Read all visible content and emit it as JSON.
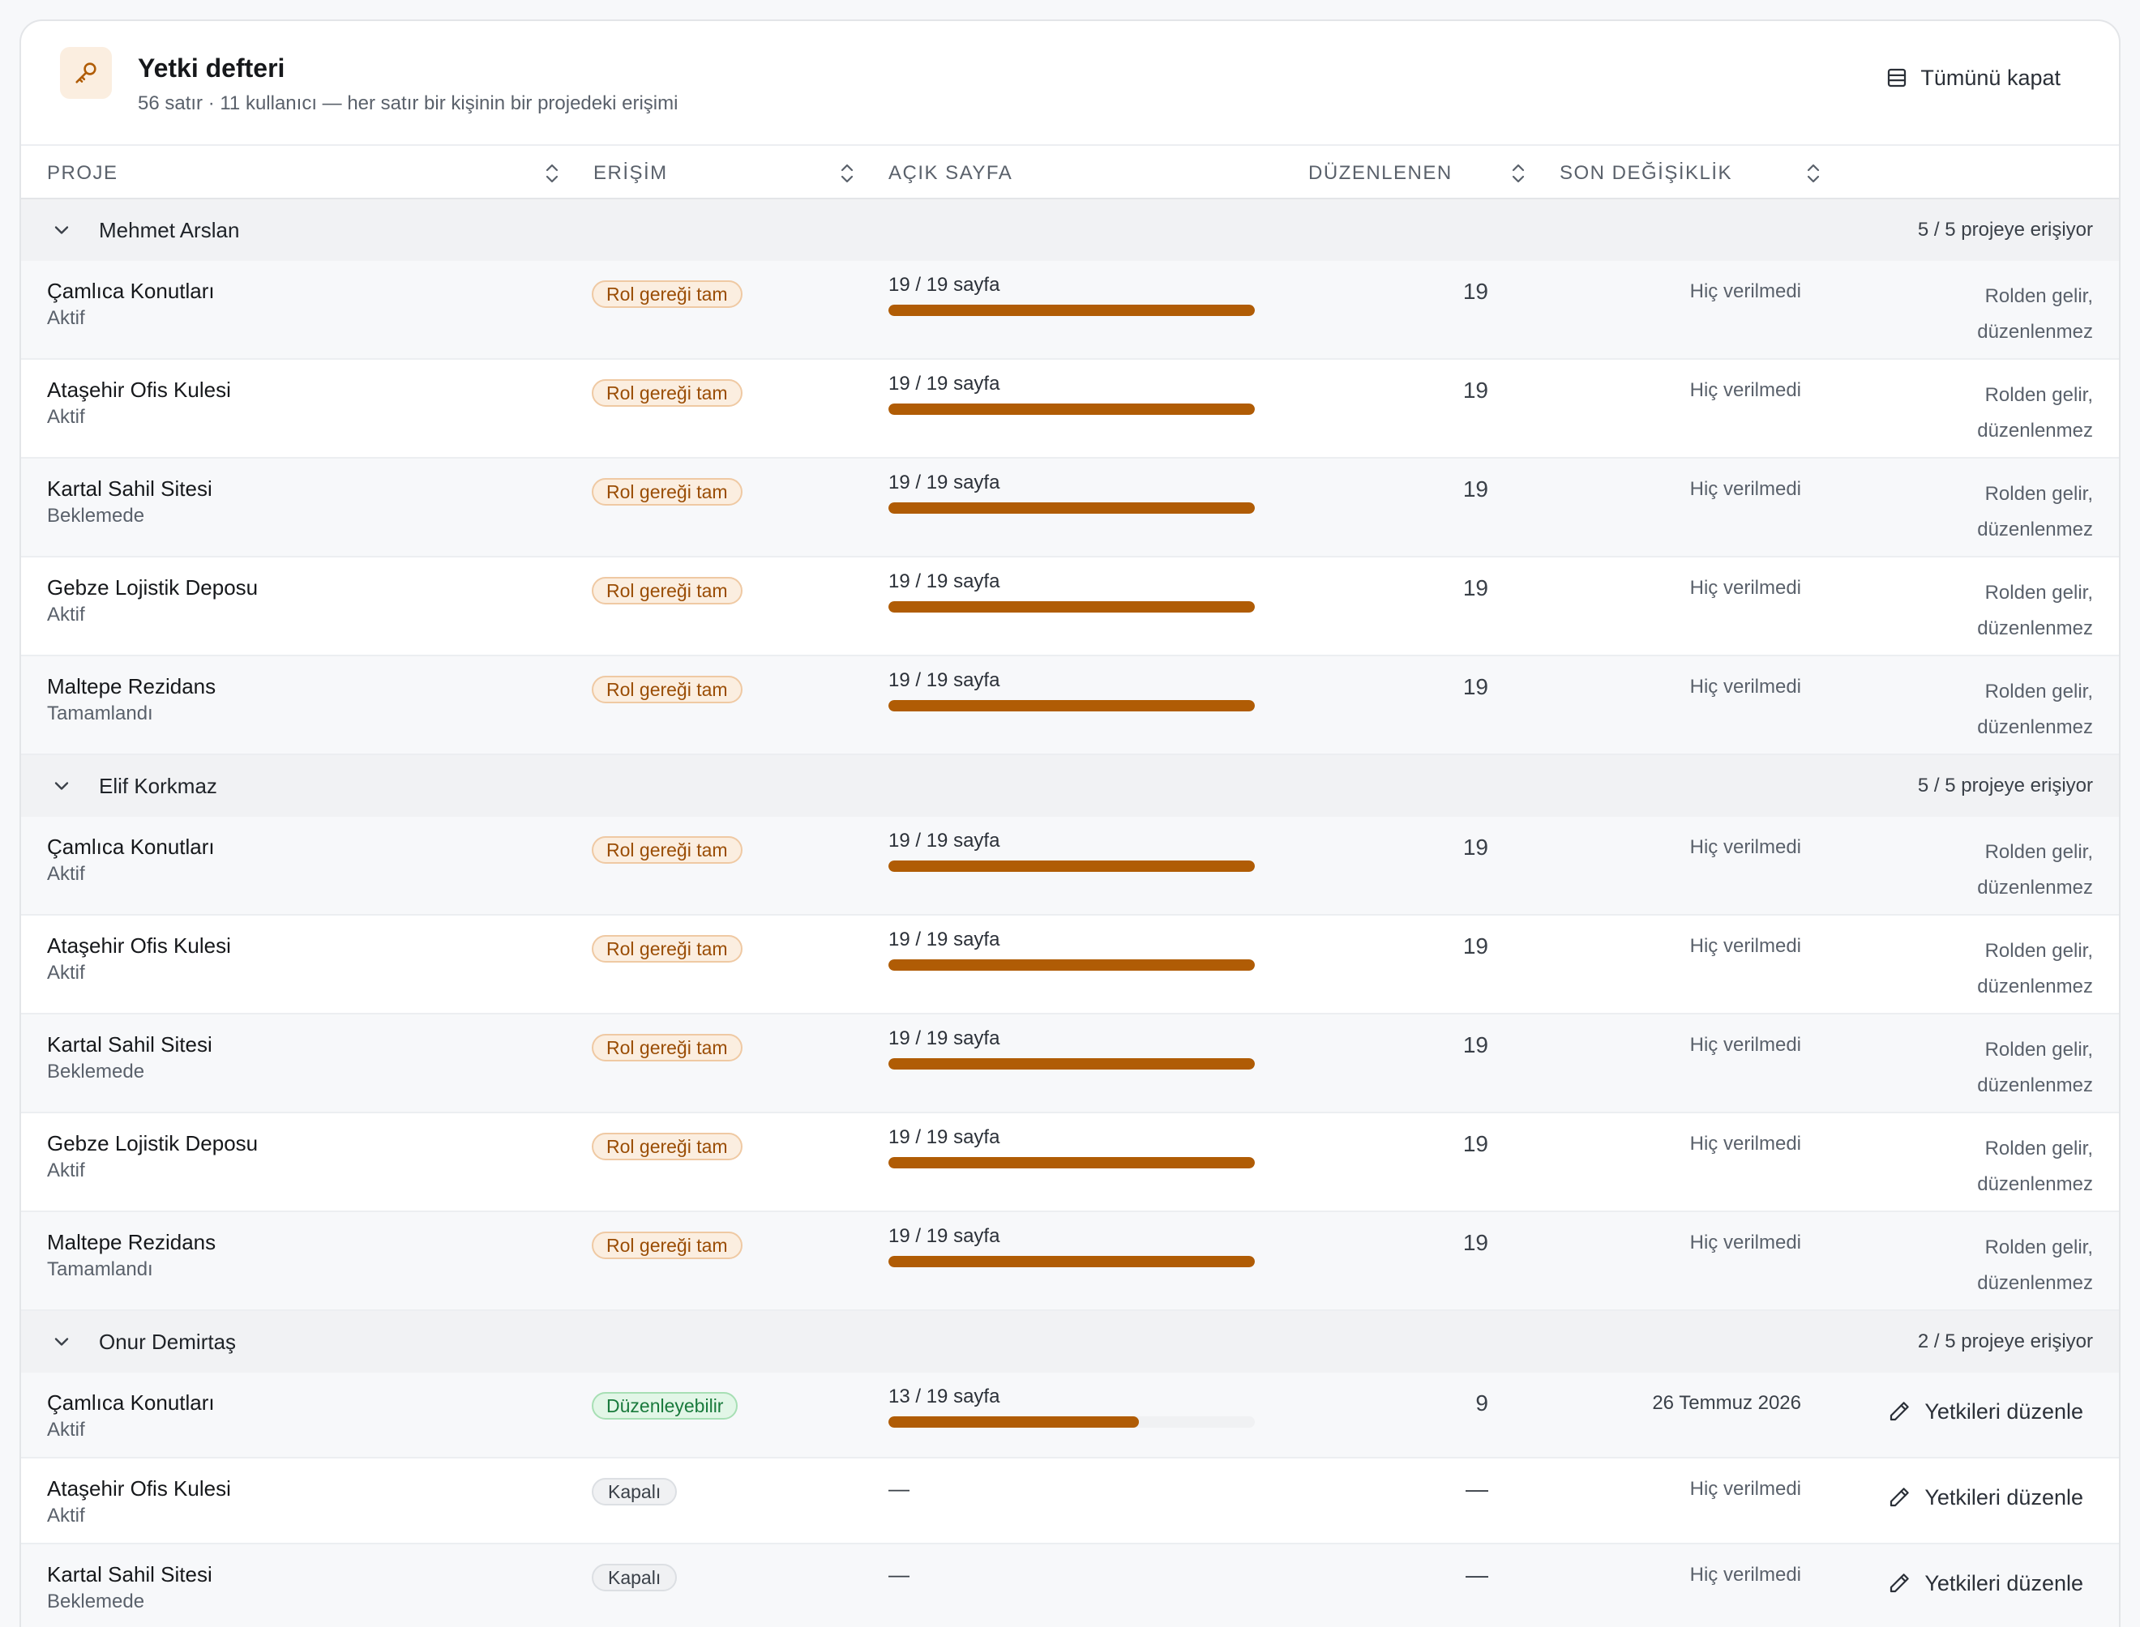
{
  "header": {
    "title": "Yetki defteri",
    "subtitle": "56 satır · 11 kullanıcı — her satır bir kişinin bir projedeki erişimi",
    "collapse_all_label": "Tümünü kapat"
  },
  "columns": {
    "project": "PROJE",
    "access": "ERİŞİM",
    "open_pages": "AÇIK SAYFA",
    "edited": "DÜZENLENEN",
    "last_change": "SON DEĞİŞİKLİK"
  },
  "colors": {
    "accent": "#b05c05",
    "accent_bg": "#fbeee0",
    "success": "#197a3c",
    "success_bg": "#e2f6e7"
  },
  "groups": [
    {
      "name": "Mehmet Arslan",
      "count_label": "5 / 5 projeye erişiyor",
      "rows": [
        {
          "project": "Çamlıca Konutları",
          "status": "Aktif",
          "badge": "Rol gereği tam",
          "badge_kind": "warn",
          "pages": "19 / 19 sayfa",
          "progress": 1,
          "edited": "19",
          "last_change": "Hiç verilmedi",
          "note": "Rolden gelir, düzenlenmez"
        },
        {
          "project": "Ataşehir Ofis Kulesi",
          "status": "Aktif",
          "badge": "Rol gereği tam",
          "badge_kind": "warn",
          "pages": "19 / 19 sayfa",
          "progress": 1,
          "edited": "19",
          "last_change": "Hiç verilmedi",
          "note": "Rolden gelir, düzenlenmez"
        },
        {
          "project": "Kartal Sahil Sitesi",
          "status": "Beklemede",
          "badge": "Rol gereği tam",
          "badge_kind": "warn",
          "pages": "19 / 19 sayfa",
          "progress": 1,
          "edited": "19",
          "last_change": "Hiç verilmedi",
          "note": "Rolden gelir, düzenlenmez"
        },
        {
          "project": "Gebze Lojistik Deposu",
          "status": "Aktif",
          "badge": "Rol gereği tam",
          "badge_kind": "warn",
          "pages": "19 / 19 sayfa",
          "progress": 1,
          "edited": "19",
          "last_change": "Hiç verilmedi",
          "note": "Rolden gelir, düzenlenmez"
        },
        {
          "project": "Maltepe Rezidans",
          "status": "Tamamlandı",
          "badge": "Rol gereği tam",
          "badge_kind": "warn",
          "pages": "19 / 19 sayfa",
          "progress": 1,
          "edited": "19",
          "last_change": "Hiç verilmedi",
          "note": "Rolden gelir, düzenlenmez"
        }
      ]
    },
    {
      "name": "Elif Korkmaz",
      "count_label": "5 / 5 projeye erişiyor",
      "rows": [
        {
          "project": "Çamlıca Konutları",
          "status": "Aktif",
          "badge": "Rol gereği tam",
          "badge_kind": "warn",
          "pages": "19 / 19 sayfa",
          "progress": 1,
          "edited": "19",
          "last_change": "Hiç verilmedi",
          "note": "Rolden gelir, düzenlenmez"
        },
        {
          "project": "Ataşehir Ofis Kulesi",
          "status": "Aktif",
          "badge": "Rol gereği tam",
          "badge_kind": "warn",
          "pages": "19 / 19 sayfa",
          "progress": 1,
          "edited": "19",
          "last_change": "Hiç verilmedi",
          "note": "Rolden gelir, düzenlenmez"
        },
        {
          "project": "Kartal Sahil Sitesi",
          "status": "Beklemede",
          "badge": "Rol gereği tam",
          "badge_kind": "warn",
          "pages": "19 / 19 sayfa",
          "progress": 1,
          "edited": "19",
          "last_change": "Hiç verilmedi",
          "note": "Rolden gelir, düzenlenmez"
        },
        {
          "project": "Gebze Lojistik Deposu",
          "status": "Aktif",
          "badge": "Rol gereği tam",
          "badge_kind": "warn",
          "pages": "19 / 19 sayfa",
          "progress": 1,
          "edited": "19",
          "last_change": "Hiç verilmedi",
          "note": "Rolden gelir, düzenlenmez"
        },
        {
          "project": "Maltepe Rezidans",
          "status": "Tamamlandı",
          "badge": "Rol gereği tam",
          "badge_kind": "warn",
          "pages": "19 / 19 sayfa",
          "progress": 1,
          "edited": "19",
          "last_change": "Hiç verilmedi",
          "note": "Rolden gelir, düzenlenmez"
        }
      ]
    },
    {
      "name": "Onur Demirtaş",
      "count_label": "2 / 5 projeye erişiyor",
      "rows": [
        {
          "project": "Çamlıca Konutları",
          "status": "Aktif",
          "badge": "Düzenleyebilir",
          "badge_kind": "ok",
          "pages": "13 / 19 sayfa",
          "progress": 0.684,
          "edited": "9",
          "last_change": "26 Temmuz 2026",
          "action": "Yetkileri düzenle"
        },
        {
          "project": "Ataşehir Ofis Kulesi",
          "status": "Aktif",
          "badge": "Kapalı",
          "badge_kind": "off",
          "pages": "—",
          "edited": "—",
          "last_change": "Hiç verilmedi",
          "action": "Yetkileri düzenle"
        },
        {
          "project": "Kartal Sahil Sitesi",
          "status": "Beklemede",
          "badge": "Kapalı",
          "badge_kind": "off",
          "pages": "—",
          "edited": "—",
          "last_change": "Hiç verilmedi",
          "action": "Yetkileri düzenle"
        }
      ]
    }
  ]
}
